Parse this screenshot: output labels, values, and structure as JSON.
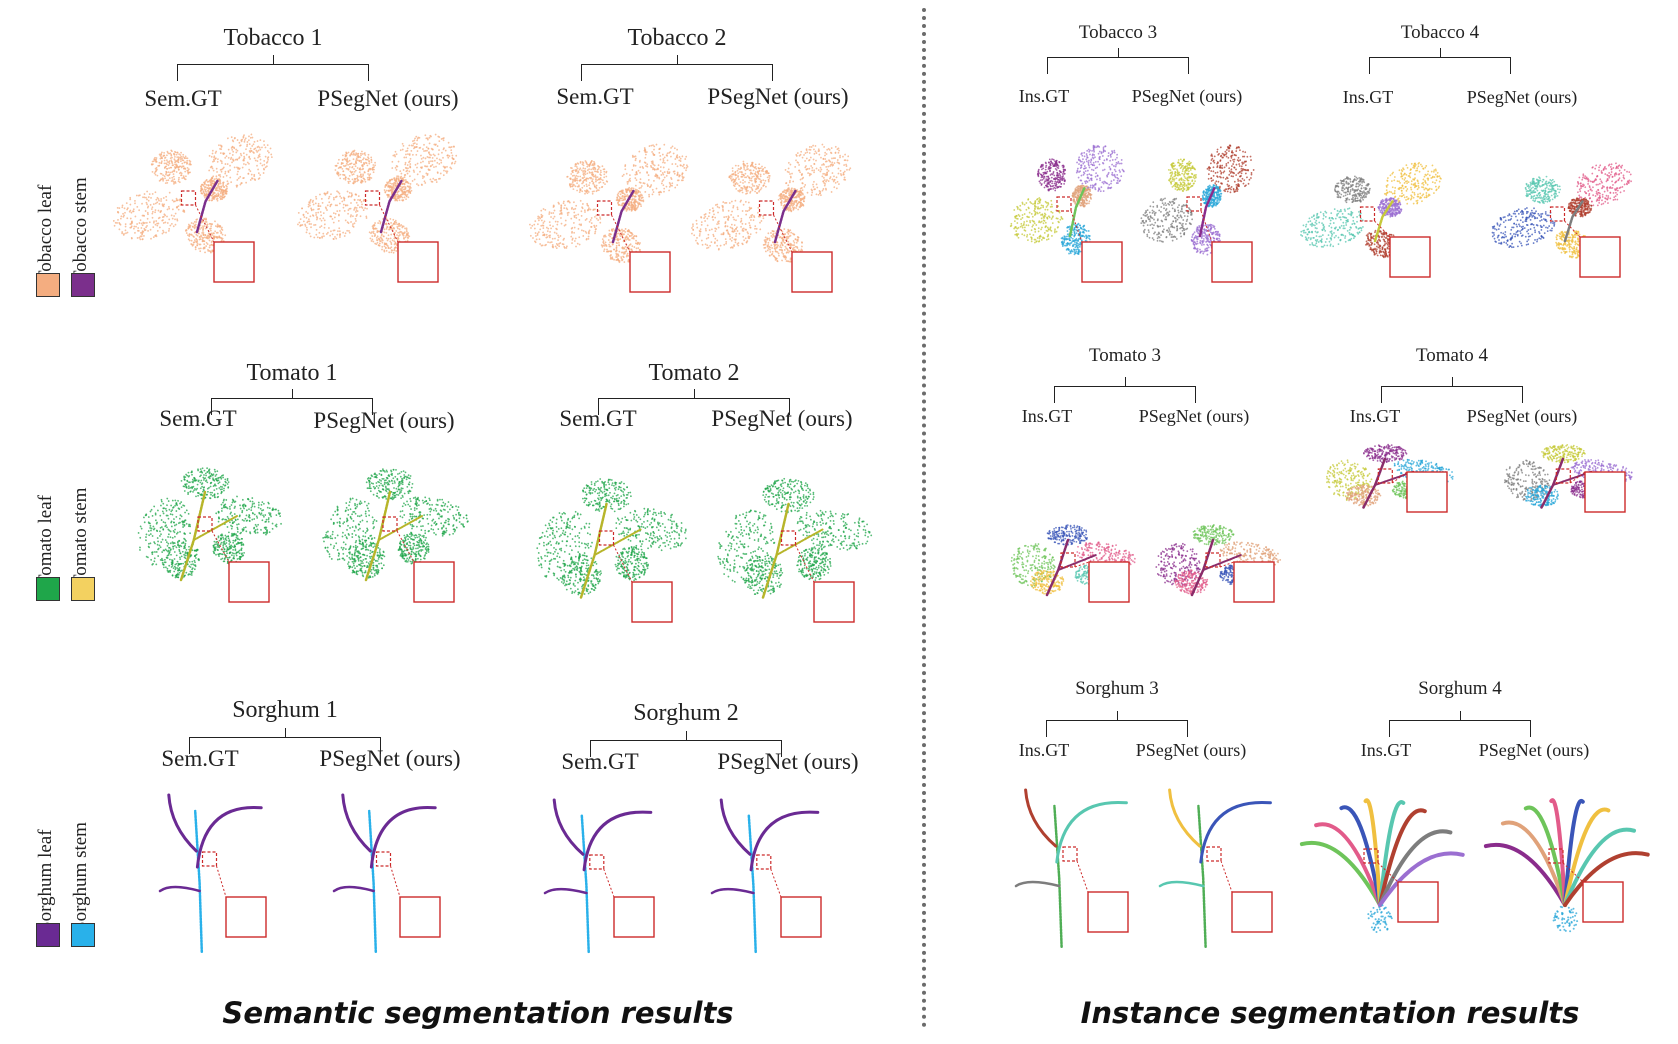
{
  "colors": {
    "tobacco_leaf": "#f4ad80",
    "tobacco_stem": "#7b2f8c",
    "tomato_leaf": "#1fa64a",
    "tomato_stem": "#f3d160",
    "sorghum_leaf": "#6a2a93",
    "sorghum_stem": "#29b1ea",
    "zoom_box": "#cc2a2a"
  },
  "legends": [
    {
      "leaf": "Tobacco leaf",
      "stem": "Tobacco stem"
    },
    {
      "leaf": "Tomato leaf",
      "stem": "Tomato stem"
    },
    {
      "leaf": "Sorghum leaf",
      "stem": "Sorghum stem"
    }
  ],
  "semantic": {
    "caption": "Semantic segmentation results",
    "panels": [
      {
        "title": "Tobacco 1",
        "left": "Sem.GT",
        "right": "PSegNet (ours)"
      },
      {
        "title": "Tobacco 2",
        "left": "Sem.GT",
        "right": "PSegNet (ours)"
      },
      {
        "title": "Tomato 1",
        "left": "Sem.GT",
        "right": "PSegNet (ours)"
      },
      {
        "title": "Tomato 2",
        "left": "Sem.GT",
        "right": "PSegNet (ours)"
      },
      {
        "title": "Sorghum 1",
        "left": "Sem.GT",
        "right": "PSegNet (ours)"
      },
      {
        "title": "Sorghum 2",
        "left": "Sem.GT",
        "right": "PSegNet (ours)"
      }
    ]
  },
  "instance": {
    "caption": "Instance segmentation results",
    "panels": [
      {
        "title": "Tobacco 3",
        "left": "Ins.GT",
        "right": "PSegNet (ours)"
      },
      {
        "title": "Tobacco 4",
        "left": "Ins.GT",
        "right": "PSegNet (ours)"
      },
      {
        "title": "Tomato 3",
        "left": "Ins.GT",
        "right": "PSegNet (ours)"
      },
      {
        "title": "Tomato 4",
        "left": "Ins.GT",
        "right": "PSegNet (ours)"
      },
      {
        "title": "Sorghum 3",
        "left": "Ins.GT",
        "right": "PSegNet (ours)"
      },
      {
        "title": "Sorghum 4",
        "left": "Ins.GT",
        "right": "PSegNet (ours)"
      }
    ]
  }
}
